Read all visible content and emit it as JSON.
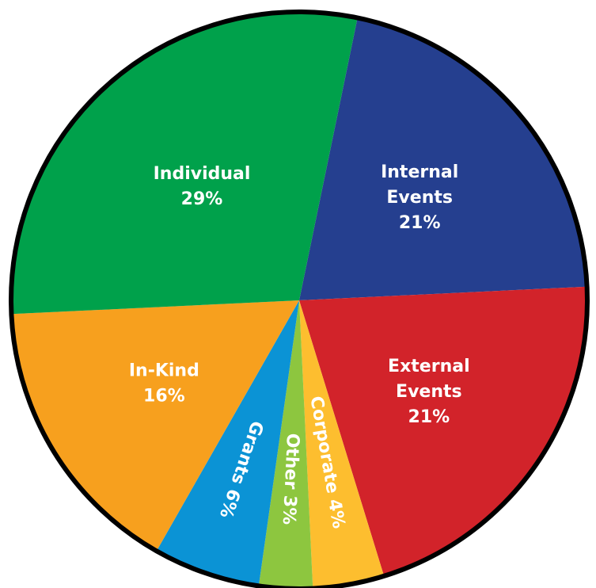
{
  "chart_data": {
    "type": "pie",
    "title": "",
    "slices": [
      {
        "label": [
          "Internal",
          "Events",
          "21%"
        ],
        "value": 21,
        "color": "#253F8F"
      },
      {
        "label": [
          "External",
          "Events",
          "21%"
        ],
        "value": 21,
        "color": "#D2232A"
      },
      {
        "label": [
          "Corporate 4%"
        ],
        "value": 4,
        "color": "#FDBE2F"
      },
      {
        "label": [
          "Other 3%"
        ],
        "value": 3,
        "color": "#8DC63F"
      },
      {
        "label": [
          "Grants 6%"
        ],
        "value": 6,
        "color": "#0B93D5"
      },
      {
        "label": [
          "In-Kind",
          "16%"
        ],
        "value": 16,
        "color": "#F7A01E"
      },
      {
        "label": [
          "Individual",
          "29%"
        ],
        "value": 29,
        "color": "#00A14B"
      }
    ]
  }
}
